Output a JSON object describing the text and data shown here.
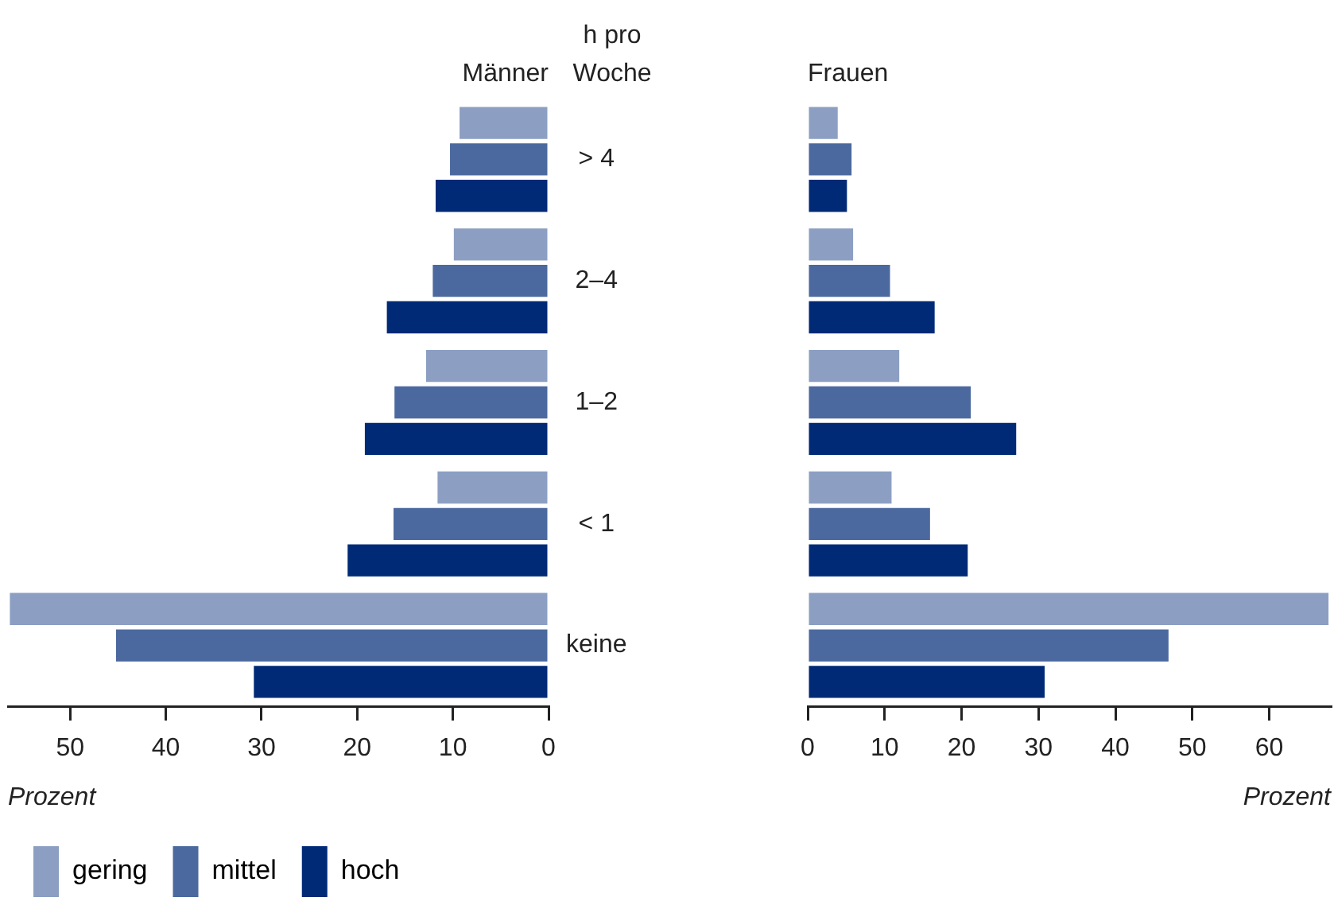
{
  "chart_data": [
    {
      "type": "bar",
      "orientation": "horizontal",
      "title": "Männer",
      "ylabel": "h pro Woche",
      "xlabel": "Prozent",
      "categories": [
        "> 4",
        "2–4",
        "1–2",
        "< 1",
        "keine"
      ],
      "series": [
        {
          "name": "gering",
          "color": "#8c9fc3",
          "values": [
            9.3,
            9.9,
            12.8,
            11.6,
            56.3
          ]
        },
        {
          "name": "mittel",
          "color": "#4b699e",
          "values": [
            10.3,
            12.1,
            16.1,
            16.2,
            45.2
          ]
        },
        {
          "name": "hoch",
          "color": "#002a76",
          "values": [
            11.8,
            16.9,
            19.2,
            21.0,
            30.8
          ]
        }
      ],
      "xlim": [
        56.5,
        0
      ],
      "xticks": [
        50,
        40,
        30,
        20,
        10,
        0
      ],
      "grid": false,
      "legend": "bottom left"
    },
    {
      "type": "bar",
      "orientation": "horizontal",
      "title": "Frauen",
      "xlabel": "Prozent",
      "categories": [
        null,
        null,
        null,
        null,
        null
      ],
      "series": [
        {
          "color": "#8c9fc3",
          "values": [
            3.9,
            5.9,
            11.9,
            10.9,
            67.7
          ]
        },
        {
          "color": "#4b699e",
          "values": [
            5.7,
            10.7,
            21.2,
            15.9,
            46.9
          ]
        },
        {
          "color": "#002a76",
          "values": [
            5.1,
            16.5,
            27.1,
            20.8,
            30.8
          ]
        }
      ],
      "xlim": [
        0,
        68
      ],
      "xticks": [
        0,
        10,
        20,
        30,
        40,
        50,
        60
      ],
      "grid": false,
      "legend": false,
      "tick_labels": "x"
    }
  ]
}
